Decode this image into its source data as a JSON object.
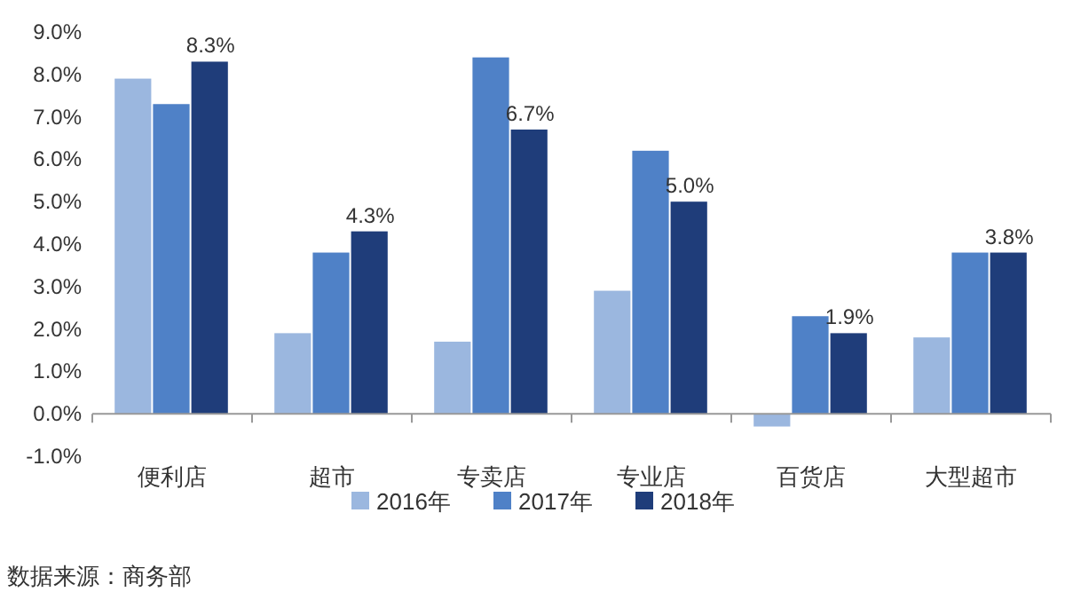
{
  "chart_data": {
    "type": "bar",
    "categories": [
      "便利店",
      "超市",
      "专卖店",
      "专业店",
      "百货店",
      "大型超市"
    ],
    "series": [
      {
        "name": "2016年",
        "color": "#9bb7df",
        "values": [
          7.9,
          1.9,
          1.7,
          2.9,
          -0.3,
          1.8
        ]
      },
      {
        "name": "2017年",
        "color": "#4f81c7",
        "values": [
          7.3,
          3.8,
          8.4,
          6.2,
          2.3,
          3.8
        ]
      },
      {
        "name": "2018年",
        "color": "#1f3d7a",
        "values": [
          8.3,
          4.3,
          6.7,
          5.0,
          1.9,
          3.8
        ],
        "value_labels": [
          "8.3%",
          "4.3%",
          "6.7%",
          "5.0%",
          "1.9%",
          "3.8%"
        ]
      }
    ],
    "ylim": [
      -1,
      9
    ],
    "yticks": [
      {
        "value": -1,
        "label": "-1.0%"
      },
      {
        "value": 0,
        "label": "0.0%"
      },
      {
        "value": 1,
        "label": "1.0%"
      },
      {
        "value": 2,
        "label": "2.0%"
      },
      {
        "value": 3,
        "label": "3.0%"
      },
      {
        "value": 4,
        "label": "4.0%"
      },
      {
        "value": 5,
        "label": "5.0%"
      },
      {
        "value": 6,
        "label": "6.0%"
      },
      {
        "value": 7,
        "label": "7.0%"
      },
      {
        "value": 8,
        "label": "8.0%"
      },
      {
        "value": 9,
        "label": "9.0%"
      }
    ],
    "legend": "bottom",
    "annotations": [
      "数据来源：商务部"
    ]
  }
}
